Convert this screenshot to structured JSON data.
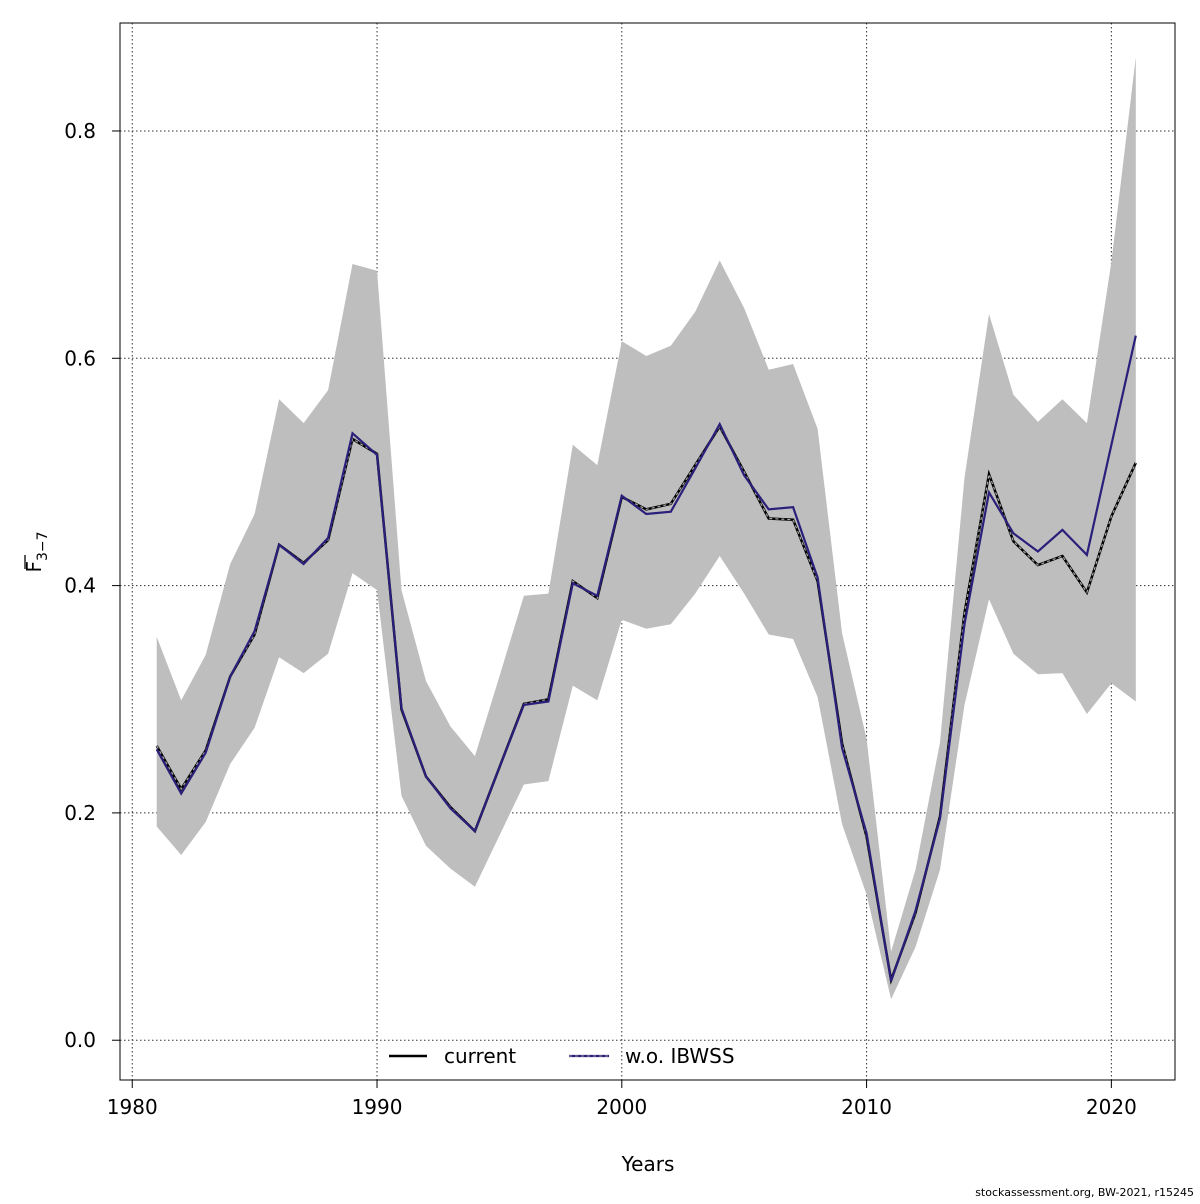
{
  "chart_data": {
    "type": "line",
    "xlabel": "Years",
    "ylabel": "F",
    "ylabel_sub": "3−7",
    "xlim": [
      1979.5,
      2022.6
    ],
    "ylim": [
      -0.035,
      0.895
    ],
    "x_ticks": [
      1980,
      1990,
      2000,
      2010,
      2020
    ],
    "y_ticks": [
      0.0,
      0.2,
      0.4,
      0.6,
      0.8
    ],
    "x_tick_labels": [
      "1980",
      "1990",
      "2000",
      "2010",
      "2020"
    ],
    "y_tick_labels": [
      "0.0",
      "0.2",
      "0.4",
      "0.6",
      "0.8"
    ],
    "grid": true,
    "legend_position": "bottom-center",
    "footer_text": "stockassessment.org, BW-2021, r15245",
    "colors": {
      "band": "#bebebe",
      "current": "#000000",
      "wo_ibwss": "#2a1f7a"
    },
    "x": [
      1981,
      1982,
      1983,
      1984,
      1985,
      1986,
      1987,
      1988,
      1989,
      1990,
      1991,
      1992,
      1993,
      1994,
      1995,
      1996,
      1997,
      1998,
      1999,
      2000,
      2001,
      2002,
      2003,
      2004,
      2005,
      2006,
      2007,
      2008,
      2009,
      2010,
      2011,
      2012,
      2013,
      2014,
      2015,
      2016,
      2017,
      2018,
      2019,
      2020,
      2021
    ],
    "band": {
      "lower": [
        0.188,
        0.163,
        0.192,
        0.243,
        0.275,
        0.337,
        0.323,
        0.34,
        0.411,
        0.396,
        0.215,
        0.171,
        0.151,
        0.135,
        0.18,
        0.225,
        0.228,
        0.312,
        0.299,
        0.37,
        0.362,
        0.366,
        0.393,
        0.426,
        0.393,
        0.357,
        0.353,
        0.302,
        0.19,
        0.128,
        0.036,
        0.082,
        0.15,
        0.295,
        0.388,
        0.34,
        0.322,
        0.323,
        0.287,
        0.314,
        0.298
      ],
      "upper": [
        0.355,
        0.299,
        0.339,
        0.419,
        0.463,
        0.564,
        0.543,
        0.572,
        0.683,
        0.677,
        0.396,
        0.316,
        0.276,
        0.25,
        0.32,
        0.391,
        0.393,
        0.524,
        0.506,
        0.615,
        0.602,
        0.611,
        0.641,
        0.686,
        0.644,
        0.59,
        0.595,
        0.538,
        0.358,
        0.265,
        0.078,
        0.15,
        0.262,
        0.495,
        0.639,
        0.568,
        0.544,
        0.564,
        0.543,
        0.685,
        0.865
      ]
    },
    "series": [
      {
        "name": "current",
        "values": [
          0.259,
          0.221,
          0.255,
          0.32,
          0.357,
          0.436,
          0.42,
          0.44,
          0.529,
          0.516,
          0.291,
          0.232,
          0.205,
          0.184,
          0.24,
          0.296,
          0.3,
          0.404,
          0.389,
          0.478,
          0.467,
          0.472,
          0.506,
          0.54,
          0.5,
          0.459,
          0.458,
          0.404,
          0.261,
          0.179,
          0.053,
          0.112,
          0.197,
          0.376,
          0.498,
          0.439,
          0.418,
          0.426,
          0.394,
          0.461,
          0.508
        ]
      },
      {
        "name": "w.o. IBWSS",
        "values": [
          0.256,
          0.217,
          0.253,
          0.32,
          0.36,
          0.436,
          0.419,
          0.442,
          0.534,
          0.515,
          0.292,
          0.232,
          0.204,
          0.184,
          0.24,
          0.295,
          0.298,
          0.402,
          0.391,
          0.479,
          0.463,
          0.465,
          0.503,
          0.542,
          0.497,
          0.467,
          0.469,
          0.407,
          0.257,
          0.182,
          0.052,
          0.114,
          0.195,
          0.366,
          0.482,
          0.446,
          0.43,
          0.449,
          0.427,
          0.524,
          0.62
        ]
      }
    ]
  }
}
